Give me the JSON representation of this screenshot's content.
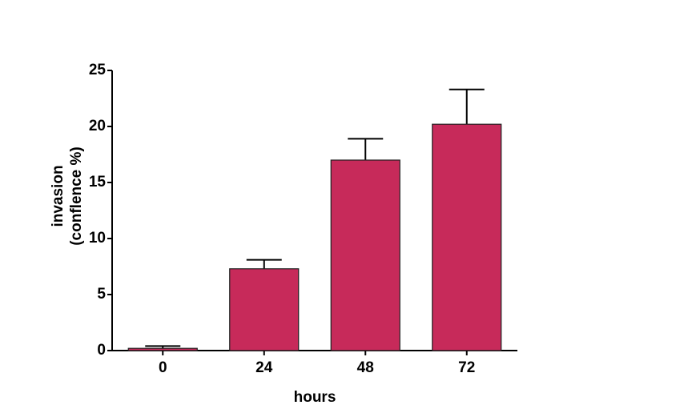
{
  "chart_data": {
    "type": "bar",
    "xlabel": "hours",
    "ylabel": [
      "invasion",
      "(conflence %)"
    ],
    "categories": [
      "0",
      "24",
      "48",
      "72"
    ],
    "values": [
      0.2,
      7.3,
      17.0,
      20.2
    ],
    "errors": [
      0.2,
      0.8,
      1.9,
      3.1
    ],
    "color": "#c72a5a",
    "ylim": [
      0,
      25
    ],
    "yticks": [
      0,
      5,
      10,
      15,
      20,
      25
    ]
  }
}
